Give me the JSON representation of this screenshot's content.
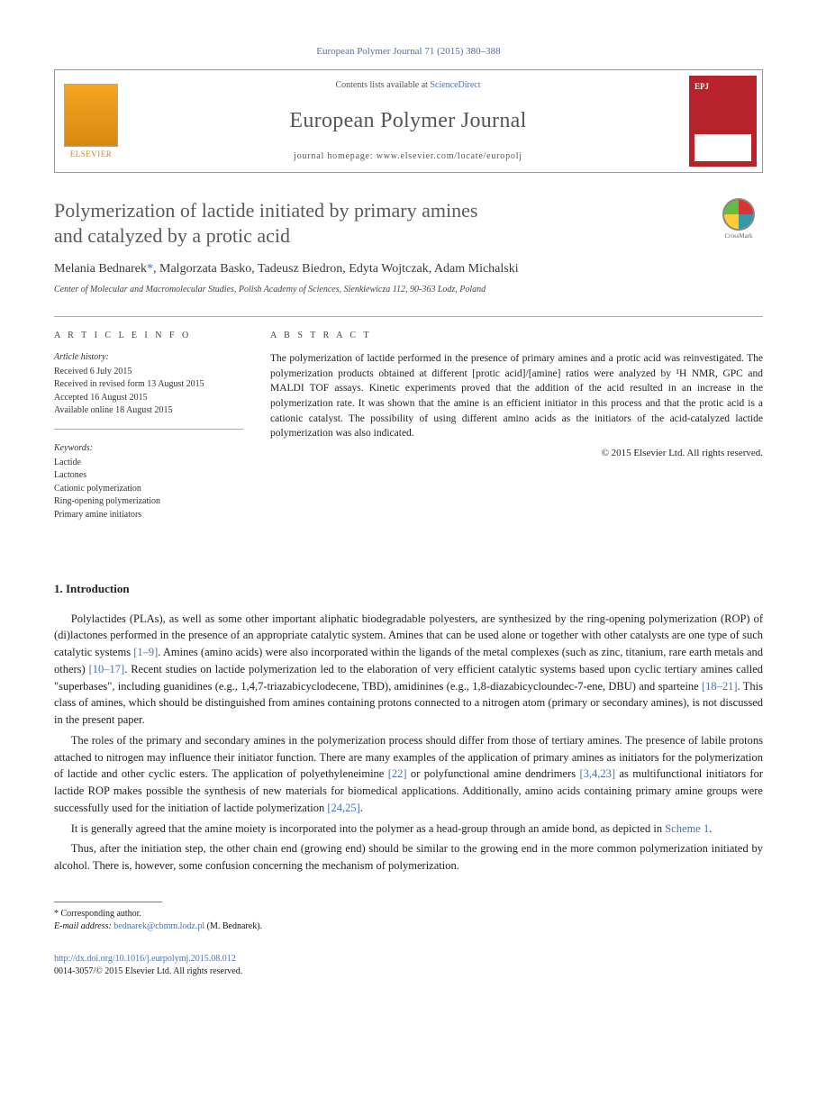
{
  "citation": "European Polymer Journal 71 (2015) 380–388",
  "header": {
    "contents_prefix": "Contents lists available at ",
    "contents_link": "ScienceDirect",
    "journal": "European Polymer Journal",
    "homepage_prefix": "journal homepage: ",
    "homepage_url": "www.elsevier.com/locate/europolj",
    "publisher": "ELSEVIER"
  },
  "title_line1": "Polymerization of lactide initiated by primary amines",
  "title_line2": "and catalyzed by a protic acid",
  "crossmark_label": "CrossMark",
  "authors_text": "Melania Bednarek",
  "authors_rest": ", Malgorzata Basko, Tadeusz Biedron, Edyta Wojtczak, Adam Michalski",
  "corr_marker": "*",
  "affiliation": "Center of Molecular and Macromolecular Studies, Polish Academy of Sciences, Sienkiewicza 112, 90-363 Lodz, Poland",
  "info": {
    "heading": "A R T I C L E   I N F O",
    "history_label": "Article history:",
    "history": [
      "Received 6 July 2015",
      "Received in revised form 13 August 2015",
      "Accepted 16 August 2015",
      "Available online 18 August 2015"
    ],
    "keywords_label": "Keywords:",
    "keywords": [
      "Lactide",
      "Lactones",
      "Cationic polymerization",
      "Ring-opening polymerization",
      "Primary amine initiators"
    ]
  },
  "abstract": {
    "heading": "A B S T R A C T",
    "text": "The polymerization of lactide performed in the presence of primary amines and a protic acid was reinvestigated. The polymerization products obtained at different [protic acid]/[amine] ratios were analyzed by ¹H NMR, GPC and MALDI TOF assays. Kinetic experiments proved that the addition of the acid resulted in an increase in the polymerization rate. It was shown that the amine is an efficient initiator in this process and that the protic acid is a cationic catalyst. The possibility of using different amino acids as the initiators of the acid-catalyzed lactide polymerization was also indicated.",
    "copyright": "© 2015 Elsevier Ltd. All rights reserved."
  },
  "intro": {
    "heading": "1. Introduction",
    "p1_a": "Polylactides (PLAs), as well as some other important aliphatic biodegradable polyesters, are synthesized by the ring-opening polymerization (ROP) of (di)lactones performed in the presence of an appropriate catalytic system. Amines that can be used alone or together with other catalysts are one type of such catalytic systems ",
    "p1_ref1": "[1–9]",
    "p1_b": ". Amines (amino acids) were also incorporated within the ligands of the metal complexes (such as zinc, titanium, rare earth metals and others) ",
    "p1_ref2": "[10–17]",
    "p1_c": ". Recent studies on lactide polymerization led to the elaboration of very efficient catalytic systems based upon cyclic tertiary amines called \"superbases\", including guanidines (e.g., 1,4,7-triazabicyclodecene, TBD), amidinines (e.g., 1,8-diazabicycloundec-7-ene, DBU) and sparteine ",
    "p1_ref3": "[18–21]",
    "p1_d": ". This class of amines, which should be distinguished from amines containing protons connected to a nitrogen atom (primary or secondary amines), is not discussed in the present paper.",
    "p2_a": "The roles of the primary and secondary amines in the polymerization process should differ from those of tertiary amines. The presence of labile protons attached to nitrogen may influence their initiator function. There are many examples of the application of primary amines as initiators for the polymerization of lactide and other cyclic esters. The application of polyethyleneimine ",
    "p2_ref1": "[22]",
    "p2_b": " or polyfunctional amine dendrimers ",
    "p2_ref2": "[3,4,23]",
    "p2_c": " as multifunctional initiators for lactide ROP makes possible the synthesis of new materials for biomedical applications. Additionally, amino acids containing primary amine groups were successfully used for the initiation of lactide polymerization ",
    "p2_ref3": "[24,25]",
    "p2_d": ".",
    "p3_a": "It is generally agreed that the amine moiety is incorporated into the polymer as a head-group through an amide bond, as depicted in ",
    "p3_ref1": "Scheme 1",
    "p3_b": ".",
    "p4": "Thus, after the initiation step, the other chain end (growing end) should be similar to the growing end in the more common polymerization initiated by alcohol. There is, however, some confusion concerning the mechanism of polymerization."
  },
  "footnote": {
    "corr_label": "* Corresponding author.",
    "email_label": "E-mail address: ",
    "email": "bednarek@cbmm.lodz.pl",
    "email_tail": " (M. Bednarek)."
  },
  "doi": {
    "url": "http://dx.doi.org/10.1016/j.eurpolymj.2015.08.012",
    "issn_line": "0014-3057/© 2015 Elsevier Ltd. All rights reserved."
  },
  "colors": {
    "link": "#4a72a8",
    "text": "#222222",
    "heading_gray": "#5a5a5a",
    "cover_red": "#b8222a"
  }
}
